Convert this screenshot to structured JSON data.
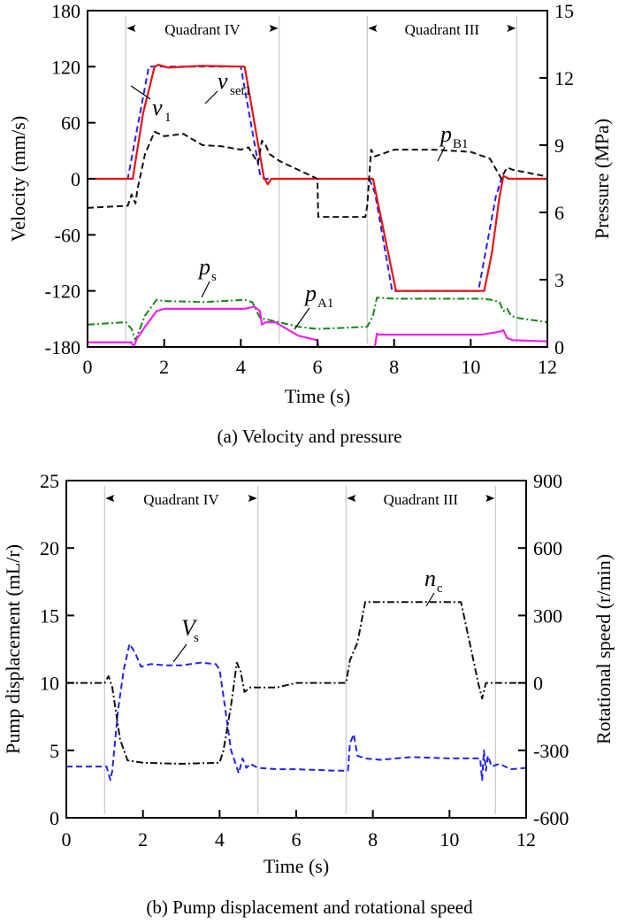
{
  "chart_data": [
    {
      "id": "a",
      "type": "line",
      "caption": "(a) Velocity and pressure",
      "xlabel": "Time (s)",
      "ylabel": "Velocity (mm/s)",
      "y2label": "Pressure (MPa)",
      "xlim": [
        0,
        12
      ],
      "ylim": [
        -180,
        180
      ],
      "y2lim": [
        0,
        15
      ],
      "xticks": [
        0,
        2,
        4,
        6,
        8,
        10,
        12
      ],
      "yticks": [
        -180,
        -120,
        -60,
        0,
        60,
        120,
        180
      ],
      "y2ticks": [
        0,
        3,
        6,
        9,
        12,
        15
      ],
      "grid": false,
      "region_markers": [
        1.0,
        5.0,
        7.3,
        11.2
      ],
      "regions": [
        {
          "label": "Quadrant IV",
          "x": [
            1.0,
            5.0
          ]
        },
        {
          "label": "Quadrant III",
          "x": [
            7.3,
            11.2
          ]
        }
      ],
      "series": [
        {
          "name": "v1",
          "symbol": "v",
          "subscript": "1",
          "axis": "left",
          "color": "#2222ee",
          "style": "dash",
          "x": [
            0,
            1.05,
            1.6,
            4.0,
            4.5,
            4.6,
            7.35,
            7.5,
            7.95,
            10.2,
            10.65,
            10.8,
            12
          ],
          "y": [
            0,
            0,
            120,
            120,
            5,
            0,
            0,
            -15,
            -120,
            -120,
            -20,
            0,
            0
          ]
        },
        {
          "name": "vset1",
          "symbol": "v",
          "subscript": "set1",
          "axis": "left",
          "color": "#ee1111",
          "style": "solid",
          "x": [
            0,
            1.18,
            1.45,
            1.75,
            1.85,
            2.1,
            3.0,
            4.1,
            4.6,
            4.7,
            4.8,
            7.45,
            7.6,
            7.75,
            8.05,
            10.35,
            10.55,
            10.75,
            10.85,
            11.0,
            12
          ],
          "y": [
            0,
            0,
            70,
            120,
            122,
            119,
            121,
            120,
            2,
            -6,
            0,
            0,
            -30,
            -60,
            -120,
            -120,
            -80,
            -20,
            3,
            0,
            0
          ]
        },
        {
          "name": "pB1",
          "symbol": "p",
          "subscript": "B1",
          "axis": "right",
          "color": "#111111",
          "style": "dash",
          "x": [
            0,
            1.05,
            1.15,
            1.25,
            1.3,
            1.5,
            1.75,
            2.0,
            2.5,
            3.0,
            3.5,
            4.0,
            4.2,
            4.45,
            4.55,
            4.65,
            4.75,
            5.0,
            5.5,
            6.0,
            6.02,
            7.25,
            7.3,
            7.4,
            7.5,
            8.0,
            9.0,
            10.0,
            10.5,
            10.8,
            10.85,
            10.95,
            11.1,
            12
          ],
          "y": [
            6.2,
            6.3,
            6.8,
            6.4,
            7.0,
            8.6,
            9.6,
            9.4,
            9.5,
            9.0,
            8.95,
            8.8,
            8.9,
            8.2,
            9.2,
            9.0,
            8.6,
            8.3,
            7.9,
            7.5,
            5.8,
            5.8,
            6.3,
            8.8,
            8.5,
            8.8,
            8.8,
            8.7,
            8.4,
            7.5,
            7.7,
            8.0,
            7.9,
            7.6
          ]
        },
        {
          "name": "ps",
          "symbol": "p",
          "subscript": "s",
          "axis": "right",
          "color": "#118811",
          "style": "dashdot",
          "x": [
            0,
            1.0,
            1.15,
            1.25,
            1.5,
            1.8,
            2.0,
            3.0,
            4.1,
            4.3,
            4.5,
            5.0,
            5.5,
            6.0,
            7.3,
            7.45,
            7.55,
            8.0,
            9.0,
            10.3,
            10.55,
            10.75,
            10.85,
            10.95,
            11.05,
            11.2,
            12
          ],
          "y": [
            1.0,
            1.1,
            0.8,
            0.3,
            1.4,
            2.1,
            2.05,
            2.0,
            2.1,
            2.0,
            1.3,
            1.1,
            0.9,
            0.8,
            0.9,
            1.4,
            2.2,
            2.15,
            2.15,
            2.15,
            2.1,
            2.0,
            1.6,
            1.7,
            1.4,
            1.3,
            1.1
          ]
        },
        {
          "name": "pA1",
          "symbol": "p",
          "subscript": "A1",
          "axis": "right",
          "color": "#ee22ee",
          "style": "solid",
          "x": [
            0,
            1.15,
            1.2,
            1.3,
            1.5,
            1.8,
            2.0,
            3.0,
            4.1,
            4.35,
            4.5,
            4.55,
            4.65,
            4.9,
            5.5,
            6.0,
            6.02,
            7.5,
            7.55,
            7.6,
            8.0,
            9.0,
            10.3,
            10.8,
            10.85,
            10.95,
            11.1,
            12
          ],
          "y": [
            0.2,
            0.2,
            0.0,
            0.4,
            0.9,
            1.6,
            1.7,
            1.7,
            1.7,
            1.8,
            1.6,
            1.0,
            1.1,
            1.1,
            0.5,
            0.3,
            0.0,
            0.0,
            0.6,
            0.55,
            0.55,
            0.55,
            0.55,
            0.7,
            0.75,
            0.4,
            0.3,
            0.25
          ]
        }
      ]
    },
    {
      "id": "b",
      "type": "line",
      "caption": "(b) Pump displacement and rotational speed",
      "xlabel": "Time (s)",
      "ylabel": "Pump displacement (mL/r)",
      "y2label": "Rotational speed (r/min)",
      "xlim": [
        0,
        12
      ],
      "ylim": [
        0,
        25
      ],
      "y2lim": [
        -600,
        900
      ],
      "xticks": [
        0,
        2,
        4,
        6,
        8,
        10,
        12
      ],
      "yticks": [
        0,
        5,
        10,
        15,
        20,
        25
      ],
      "y2ticks": [
        -600,
        -300,
        0,
        300,
        600,
        900
      ],
      "grid": false,
      "region_markers": [
        1.0,
        5.0,
        7.3,
        11.2
      ],
      "regions": [
        {
          "label": "Quadrant IV",
          "x": [
            1.0,
            5.0
          ]
        },
        {
          "label": "Quadrant III",
          "x": [
            7.3,
            11.2
          ]
        }
      ],
      "series": [
        {
          "name": "Vs",
          "symbol": "V",
          "subscript": "s",
          "axis": "left",
          "color": "#2222ee",
          "style": "dash",
          "x": [
            0,
            1.05,
            1.15,
            1.2,
            1.35,
            1.5,
            1.65,
            1.8,
            1.95,
            2.2,
            2.6,
            3.0,
            3.5,
            3.9,
            4.0,
            4.1,
            4.3,
            4.5,
            4.6,
            4.7,
            4.8,
            5.0,
            5.5,
            6.0,
            7.0,
            7.35,
            7.4,
            7.5,
            7.6,
            7.8,
            8.2,
            9.0,
            10.0,
            10.8,
            10.85,
            10.9,
            10.95,
            11.0,
            11.1,
            11.3,
            11.6,
            12
          ],
          "y": [
            3.8,
            3.8,
            2.8,
            3.5,
            8.0,
            11.0,
            12.9,
            12.2,
            11.2,
            11.4,
            11.3,
            11.3,
            11.5,
            11.4,
            11.0,
            9.0,
            5.0,
            3.3,
            4.4,
            3.7,
            4.0,
            3.7,
            3.6,
            3.6,
            3.5,
            3.5,
            5.5,
            6.2,
            4.6,
            4.4,
            4.3,
            4.5,
            4.4,
            4.4,
            2.8,
            5.0,
            3.5,
            4.6,
            3.8,
            4.0,
            3.6,
            3.7
          ]
        },
        {
          "name": "nc",
          "symbol": "n",
          "subscript": "c",
          "axis": "right",
          "color": "#111111",
          "style": "dashdot",
          "x": [
            0,
            1.0,
            1.1,
            1.2,
            1.4,
            1.6,
            2.0,
            3.0,
            4.0,
            4.1,
            4.3,
            4.45,
            4.55,
            4.65,
            4.8,
            5.5,
            6.0,
            7.3,
            7.4,
            7.6,
            7.8,
            8.0,
            9.0,
            10.3,
            10.5,
            10.75,
            10.85,
            10.95,
            11.1,
            12
          ],
          "y": [
            0,
            0,
            30,
            -20,
            -250,
            -345,
            -355,
            -360,
            -355,
            -300,
            -100,
            90,
            50,
            -40,
            -20,
            -20,
            0,
            0,
            100,
            180,
            360,
            360,
            360,
            360,
            200,
            0,
            -70,
            0,
            0,
            0
          ]
        }
      ]
    }
  ]
}
